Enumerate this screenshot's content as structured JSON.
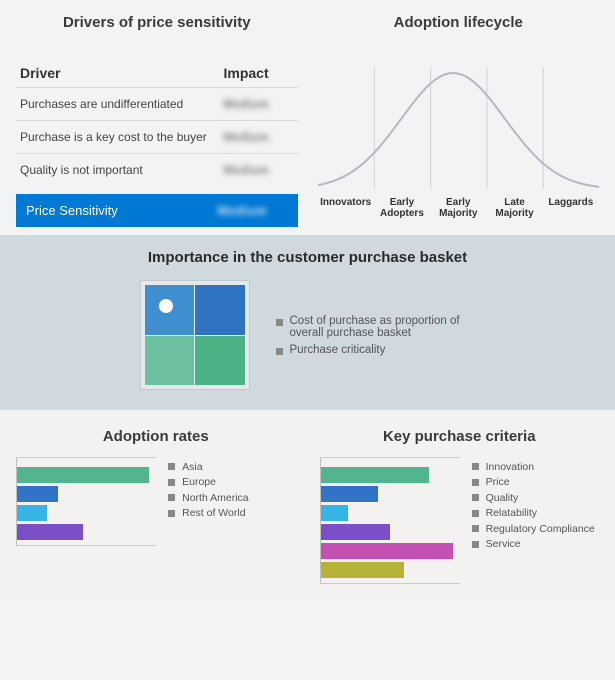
{
  "drivers": {
    "title": "Drivers of price sensitivity",
    "head_driver": "Driver",
    "head_impact": "Impact",
    "rows": [
      {
        "driver": "Purchases are undifferentiated",
        "impact": "Medium"
      },
      {
        "driver": "Purchase is a key cost to the buyer",
        "impact": "Medium"
      },
      {
        "driver": "Quality is not important",
        "impact": "Medium"
      }
    ],
    "summary_label": "Price Sensitivity",
    "summary_value": "Medium",
    "summary_bg": "#0078d4"
  },
  "lifecycle": {
    "title": "Adoption lifecycle",
    "type": "bell-curve",
    "categories": [
      "Innovators",
      "Early Adopters",
      "Early Majority",
      "Late Majority",
      "Laggards"
    ],
    "curve_color": "#b5b8c0",
    "gridline_color": "#cfd1d4",
    "background": "#f2f3f4",
    "label_fontsize": 10
  },
  "importance": {
    "title": "Importance in the customer purchase basket",
    "section_bg": "#cfd9de",
    "treemap_cells": [
      "#3f8fd1",
      "#2f74c0",
      "#6cc0a0",
      "#4cb184"
    ],
    "dot_color": "#ffffff",
    "legend": [
      "Cost of purchase as proportion of overall purchase basket",
      "Purchase criticality"
    ]
  },
  "adoption_rates": {
    "title": "Adoption rates",
    "type": "bar",
    "max": 100,
    "series": [
      {
        "label": "Asia",
        "value": 95,
        "color": "#52b58e"
      },
      {
        "label": "Europe",
        "value": 30,
        "color": "#3173c6"
      },
      {
        "label": "North America",
        "value": 22,
        "color": "#34b5e4"
      },
      {
        "label": "Rest of World",
        "value": 48,
        "color": "#7b4fc7"
      }
    ]
  },
  "key_criteria": {
    "title": "Key purchase criteria",
    "type": "bar",
    "max": 100,
    "series": [
      {
        "label": "Innovation",
        "value": 78,
        "color": "#52b58e"
      },
      {
        "label": "Price",
        "value": 42,
        "color": "#3173c6"
      },
      {
        "label": "Quality",
        "value": 20,
        "color": "#34b5e4"
      },
      {
        "label": "Relatability",
        "value": 50,
        "color": "#7b4fc7"
      },
      {
        "label": "Regulatory Compliance",
        "value": 95,
        "color": "#c44fb5"
      },
      {
        "label": "Service",
        "value": 60,
        "color": "#b5b338"
      }
    ]
  }
}
